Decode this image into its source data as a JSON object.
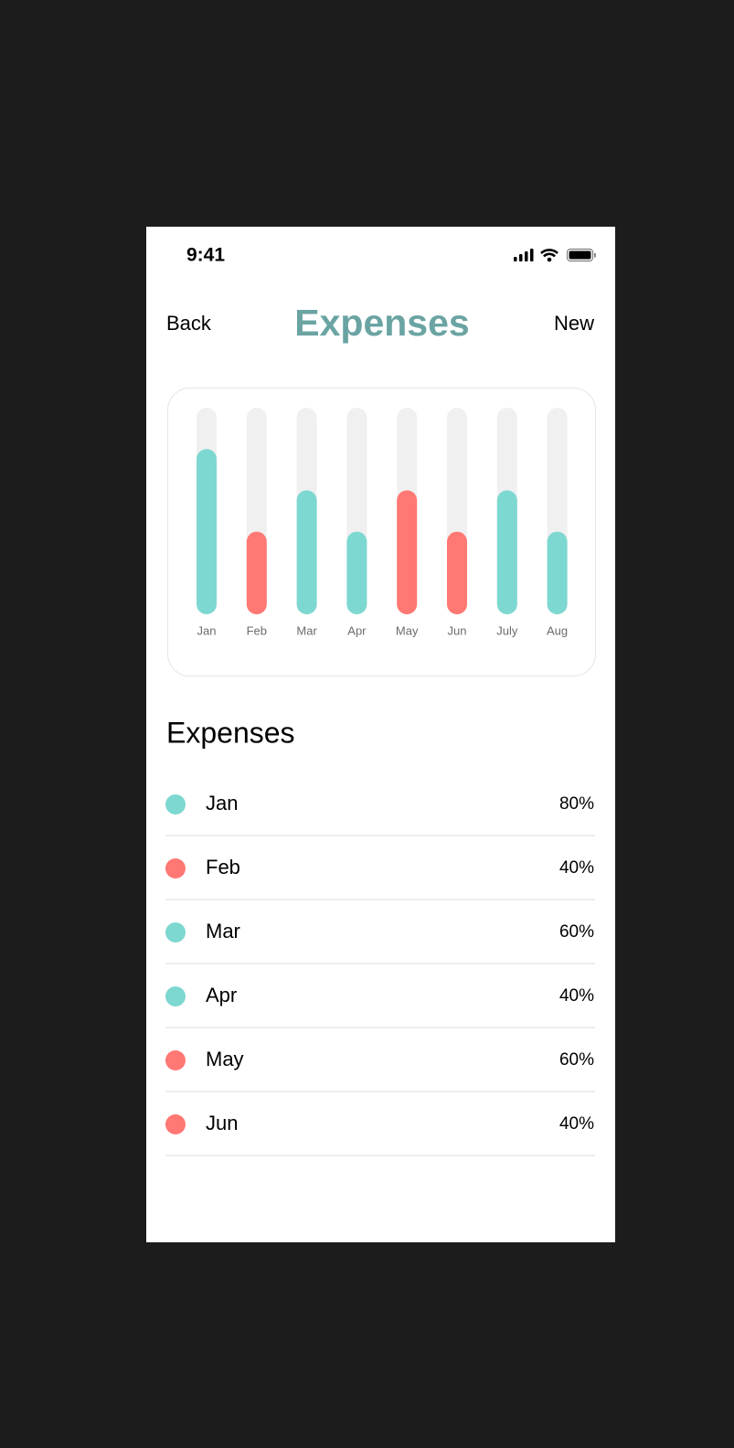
{
  "status_bar": {
    "time": "9:41"
  },
  "nav": {
    "back": "Back",
    "title": "Expenses",
    "new": "New"
  },
  "chart_data": {
    "type": "bar",
    "categories": [
      "Jan",
      "Feb",
      "Mar",
      "Apr",
      "May",
      "Jun",
      "July",
      "Aug"
    ],
    "values": [
      80,
      40,
      60,
      40,
      60,
      40,
      60,
      40
    ],
    "colors": [
      "#7dd8d1",
      "#ff7873",
      "#7dd8d1",
      "#7dd8d1",
      "#ff7873",
      "#ff7873",
      "#7dd8d1",
      "#7dd8d1"
    ],
    "ylim": [
      0,
      100
    ]
  },
  "list": {
    "title": "Expenses",
    "items": [
      {
        "month": "Jan",
        "percent": "80%",
        "color": "#7dd8d1"
      },
      {
        "month": "Feb",
        "percent": "40%",
        "color": "#ff7873"
      },
      {
        "month": "Mar",
        "percent": "60%",
        "color": "#7dd8d1"
      },
      {
        "month": "Apr",
        "percent": "40%",
        "color": "#7dd8d1"
      },
      {
        "month": "May",
        "percent": "60%",
        "color": "#ff7873"
      },
      {
        "month": "Jun",
        "percent": "40%",
        "color": "#ff7873"
      }
    ]
  }
}
